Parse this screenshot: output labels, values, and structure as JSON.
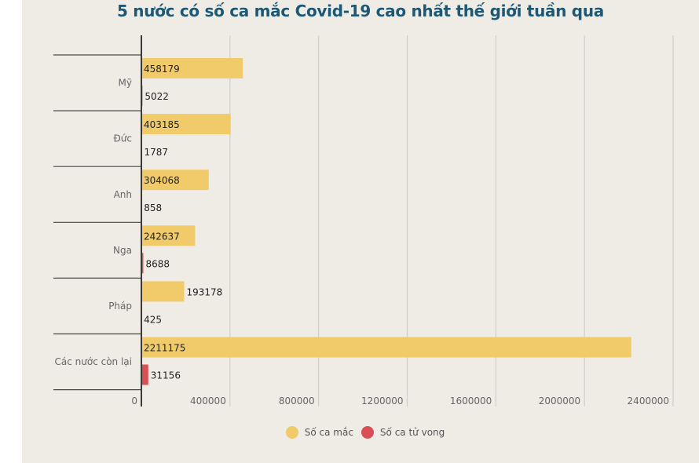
{
  "colors": {
    "cases": "#f1cb6a",
    "deaths": "#d94f55",
    "title": "#1d5876",
    "background": "#efece6"
  },
  "chart_data": {
    "type": "bar",
    "orientation": "horizontal",
    "title": "5 nước có số ca mắc Covid-19 cao nhất thế giới tuần qua",
    "categories": [
      "Mỹ",
      "Đức",
      "Anh",
      "Nga",
      "Pháp",
      "Các nước còn lại"
    ],
    "series": [
      {
        "name": "Số ca mắc",
        "values": [
          458179,
          403185,
          304068,
          242637,
          193178,
          2211175
        ]
      },
      {
        "name": "Số ca tử vong",
        "values": [
          5022,
          1787,
          858,
          8688,
          425,
          31156
        ]
      }
    ],
    "xlim": [
      0,
      2400000
    ],
    "xticks": [
      "0",
      "400000",
      "800000",
      "1200000",
      "1600000",
      "2000000",
      "2400000"
    ],
    "xtick_values": [
      0,
      400000,
      800000,
      1200000,
      1600000,
      2000000,
      2400000
    ],
    "grid": true,
    "legend_position": "bottom"
  },
  "legend": {
    "items": [
      {
        "label": "Số ca mắc"
      },
      {
        "label": "Số ca tử vong"
      }
    ]
  }
}
